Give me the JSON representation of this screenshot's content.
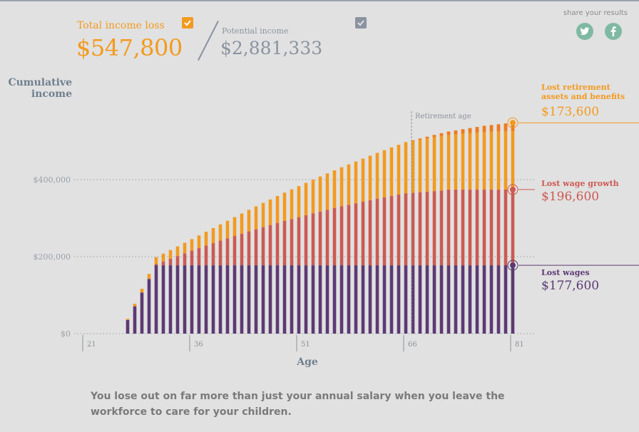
{
  "header": {
    "total_loss_label": "Total income loss",
    "total_loss_value": "$547,800",
    "potential_label": "Potential income",
    "potential_value": "$2,881,333",
    "share_label": "share your results",
    "twitter_icon": "twitter-icon",
    "facebook_icon": "facebook-icon"
  },
  "legend": {
    "retirement_label": "Lost retirement assets and benefits",
    "retirement_value": "$173,600",
    "wage_growth_label": "Lost wage growth",
    "wage_growth_value": "$196,600",
    "wages_label": "Lost wages",
    "wages_value": "$177,600"
  },
  "caption": "You lose out on far more than just your annual salary when you leave the workforce to care for your children.",
  "colors": {
    "retirement": "#f29a1f",
    "retirement_late": "#ee7a1e",
    "wage_growth": "#cc5a52",
    "wages": "#5c3a73",
    "accent_green": "#7fb9a3"
  },
  "chart_data": {
    "type": "bar",
    "stacked": true,
    "ylabel": "Cumulative income",
    "xlabel": "Age",
    "yticks": [
      "$0",
      "$200,000",
      "$400,000"
    ],
    "ytick_values": [
      0,
      200000,
      400000
    ],
    "xticks": [
      "21",
      "36",
      "51",
      "66",
      "81"
    ],
    "xtick_values": [
      21,
      36,
      51,
      66,
      81
    ],
    "ylim": [
      0,
      600000
    ],
    "xlim": [
      21,
      82
    ],
    "annotation": "Retirement age",
    "retirement_age": 66,
    "grid": "dotted horizontal at labeled ticks",
    "x": [
      27,
      28,
      29,
      30,
      31,
      32,
      33,
      34,
      35,
      36,
      37,
      38,
      39,
      40,
      41,
      42,
      43,
      44,
      45,
      46,
      47,
      48,
      49,
      50,
      51,
      52,
      53,
      54,
      55,
      56,
      57,
      58,
      59,
      60,
      61,
      62,
      63,
      64,
      65,
      66,
      67,
      68,
      69,
      70,
      71,
      72,
      73,
      74,
      75,
      76,
      77,
      78,
      79,
      80,
      81
    ],
    "series": [
      {
        "name": "Lost wages",
        "values": [
          35530,
          71060,
          106590,
          142120,
          177600,
          177600,
          177600,
          177600,
          177600,
          177600,
          177600,
          177600,
          177600,
          177600,
          177600,
          177600,
          177600,
          177600,
          177600,
          177600,
          177600,
          177600,
          177600,
          177600,
          177600,
          177600,
          177600,
          177600,
          177600,
          177600,
          177600,
          177600,
          177600,
          177600,
          177600,
          177600,
          177600,
          177600,
          177600,
          177600,
          177600,
          177600,
          177600,
          177600,
          177600,
          177600,
          177600,
          177600,
          177600,
          177600,
          177600,
          177600,
          177600,
          177600,
          177600
        ]
      },
      {
        "name": "Lost wage growth",
        "values": [
          0,
          0,
          0,
          0,
          3000,
          10000,
          17000,
          24000,
          31000,
          38000,
          44500,
          51000,
          57500,
          64000,
          70000,
          76000,
          82000,
          88000,
          93500,
          99000,
          104500,
          110000,
          115000,
          120000,
          125000,
          130000,
          135000,
          139500,
          144000,
          148500,
          153000,
          157000,
          161000,
          165000,
          169000,
          173000,
          176500,
          180000,
          183500,
          187000,
          188400,
          189800,
          191200,
          192600,
          194000,
          196600,
          196600,
          196600,
          196600,
          196600,
          196600,
          196600,
          196600,
          196600,
          196600
        ]
      },
      {
        "name": "Lost retirement assets and benefits",
        "values": [
          3000,
          6500,
          9800,
          13000,
          18000,
          20000,
          22500,
          25000,
          27500,
          30000,
          33000,
          36000,
          39000,
          42000,
          45500,
          49000,
          52500,
          56000,
          59500,
          63000,
          66500,
          70000,
          73500,
          77000,
          80500,
          84000,
          87500,
          91000,
          94500,
          98000,
          101500,
          105000,
          108500,
          112000,
          115500,
          119000,
          122500,
          126000,
          129500,
          133000,
          136200,
          139400,
          142600,
          145800,
          149000,
          150600,
          153600,
          156600,
          159600,
          162600,
          165600,
          167600,
          169600,
          171600,
          173600
        ]
      }
    ]
  }
}
